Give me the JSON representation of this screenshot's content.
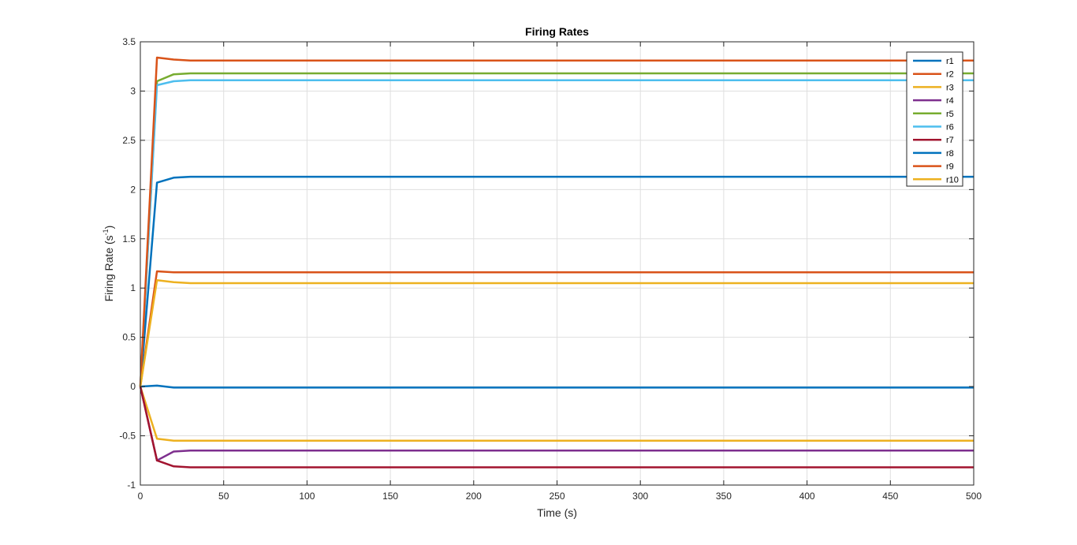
{
  "chart_data": {
    "type": "line",
    "title": "Firing Rates",
    "xlabel": "Time (s)",
    "ylabel_main": "Firing Rate (s",
    "ylabel_sup": "-1",
    "ylabel_end": ")",
    "xlim": [
      0,
      500
    ],
    "ylim": [
      -1,
      3.5
    ],
    "xticks": [
      0,
      50,
      100,
      150,
      200,
      250,
      300,
      350,
      400,
      450,
      500
    ],
    "yticks": [
      -1,
      -0.5,
      0,
      0.5,
      1,
      1.5,
      2,
      2.5,
      3,
      3.5
    ],
    "xtick_labels": [
      "0",
      "50",
      "100",
      "150",
      "200",
      "250",
      "300",
      "350",
      "400",
      "450",
      "500"
    ],
    "ytick_labels": [
      "-1",
      "-0.5",
      "0",
      "0.5",
      "1",
      "1.5",
      "2",
      "2.5",
      "3",
      "3.5"
    ],
    "grid": true,
    "legend_position": "top-right",
    "x": [
      0,
      10,
      20,
      30,
      40,
      500
    ],
    "series": [
      {
        "name": "r1",
        "color": "#0072BD",
        "values": [
          0,
          0.01,
          -0.01,
          -0.01,
          -0.01,
          -0.01
        ]
      },
      {
        "name": "r2",
        "color": "#D95319",
        "values": [
          0,
          1.17,
          1.16,
          1.16,
          1.16,
          1.16
        ]
      },
      {
        "name": "r3",
        "color": "#EDB120",
        "values": [
          0,
          -0.53,
          -0.55,
          -0.55,
          -0.55,
          -0.55
        ]
      },
      {
        "name": "r4",
        "color": "#7E2F8E",
        "values": [
          0,
          -0.75,
          -0.66,
          -0.65,
          -0.65,
          -0.65
        ]
      },
      {
        "name": "r5",
        "color": "#77AC30",
        "values": [
          0,
          3.1,
          3.17,
          3.18,
          3.18,
          3.18
        ]
      },
      {
        "name": "r6",
        "color": "#4DBEEE",
        "values": [
          0,
          3.06,
          3.1,
          3.11,
          3.11,
          3.11
        ]
      },
      {
        "name": "r7",
        "color": "#A2142F",
        "values": [
          0,
          -0.75,
          -0.81,
          -0.82,
          -0.82,
          -0.82
        ]
      },
      {
        "name": "r8",
        "color": "#0072BD",
        "values": [
          0,
          2.07,
          2.12,
          2.13,
          2.13,
          2.13
        ]
      },
      {
        "name": "r9",
        "color": "#D95319",
        "values": [
          0,
          3.34,
          3.32,
          3.31,
          3.31,
          3.31
        ]
      },
      {
        "name": "r10",
        "color": "#EDB120",
        "values": [
          0,
          1.08,
          1.06,
          1.05,
          1.05,
          1.05
        ]
      }
    ]
  }
}
